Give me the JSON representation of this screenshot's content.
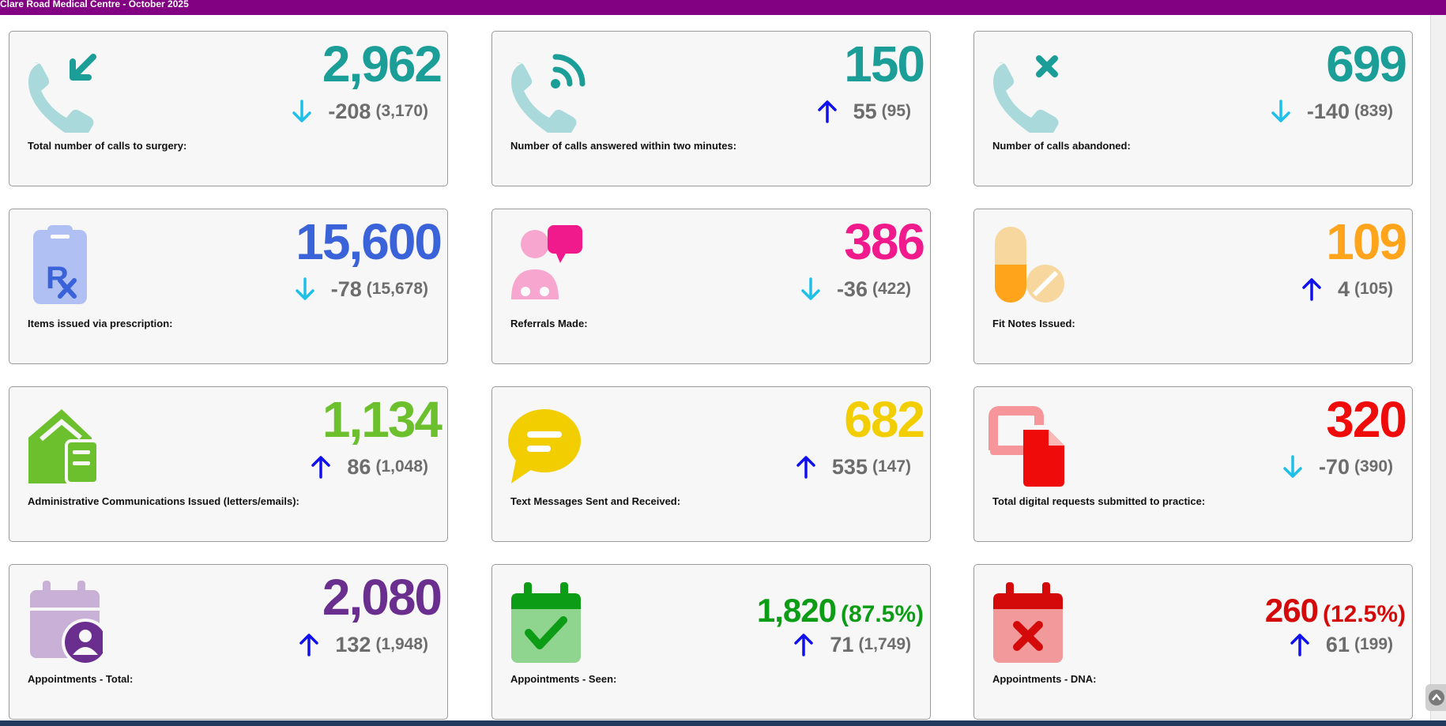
{
  "header": {
    "title": "Clare Road Medical Centre - October 2025"
  },
  "colors": {
    "header_bg": "#820082",
    "arrow_down": "#1ec0ea",
    "arrow_up": "#1010ee",
    "change_text": "#6d6d6d"
  },
  "cards": [
    {
      "icon": "phone-incoming-icon",
      "value": "2,962",
      "value_color": "#1b9e98",
      "direction": "down",
      "change": "-208",
      "previous": "(3,170)",
      "label": "Total number of calls to surgery:"
    },
    {
      "icon": "phone-answered-icon",
      "value": "150",
      "value_color": "#1b9e98",
      "direction": "up",
      "change": "55",
      "previous": "(95)",
      "label": "Number of calls answered within two minutes:"
    },
    {
      "icon": "phone-abandoned-icon",
      "value": "699",
      "value_color": "#1b9e98",
      "direction": "down",
      "change": "-140",
      "previous": "(839)",
      "label": "Number of calls abandoned:"
    },
    {
      "icon": "prescription-icon",
      "value": "15,600",
      "value_color": "#3a62d9",
      "direction": "down",
      "change": "-78",
      "previous": "(15,678)",
      "label": "Items issued via prescription:"
    },
    {
      "icon": "referral-icon",
      "value": "386",
      "value_color": "#f01a8c",
      "direction": "down",
      "change": "-36",
      "previous": "(422)",
      "label": "Referrals Made:"
    },
    {
      "icon": "fit-note-pills-icon",
      "value": "109",
      "value_color": "#ffa41b",
      "direction": "up",
      "change": "4",
      "previous": "(105)",
      "label": "Fit Notes Issued:"
    },
    {
      "icon": "admin-letter-icon",
      "value": "1,134",
      "value_color": "#6cbf2d",
      "direction": "up",
      "change": "86",
      "previous": "(1,048)",
      "label": "Administrative Communications Issued (letters/emails):"
    },
    {
      "icon": "text-message-icon",
      "value": "682",
      "value_color": "#f2ce00",
      "direction": "up",
      "change": "535",
      "previous": "(147)",
      "label": "Text Messages Sent and Received:"
    },
    {
      "icon": "digital-request-icon",
      "value": "320",
      "value_color": "#f00b0b",
      "direction": "down",
      "change": "-70",
      "previous": "(390)",
      "label": "Total digital requests submitted to practice:"
    },
    {
      "icon": "calendar-user-icon",
      "value": "2,080",
      "value_color": "#6a2f8e",
      "direction": "up",
      "change": "132",
      "previous": "(1,948)",
      "label": "Appointments - Total:"
    },
    {
      "icon": "calendar-check-icon",
      "value": "1,820",
      "percent": "(87.5%)",
      "value_color": "#0d9c16",
      "direction": "up",
      "change": "71",
      "previous": "(1,749)",
      "label": "Appointments - Seen:"
    },
    {
      "icon": "calendar-cross-icon",
      "value": "260",
      "percent": "(12.5%)",
      "value_color": "#d40a0a",
      "direction": "up",
      "change": "61",
      "previous": "(199)",
      "label": "Appointments - DNA:"
    }
  ]
}
